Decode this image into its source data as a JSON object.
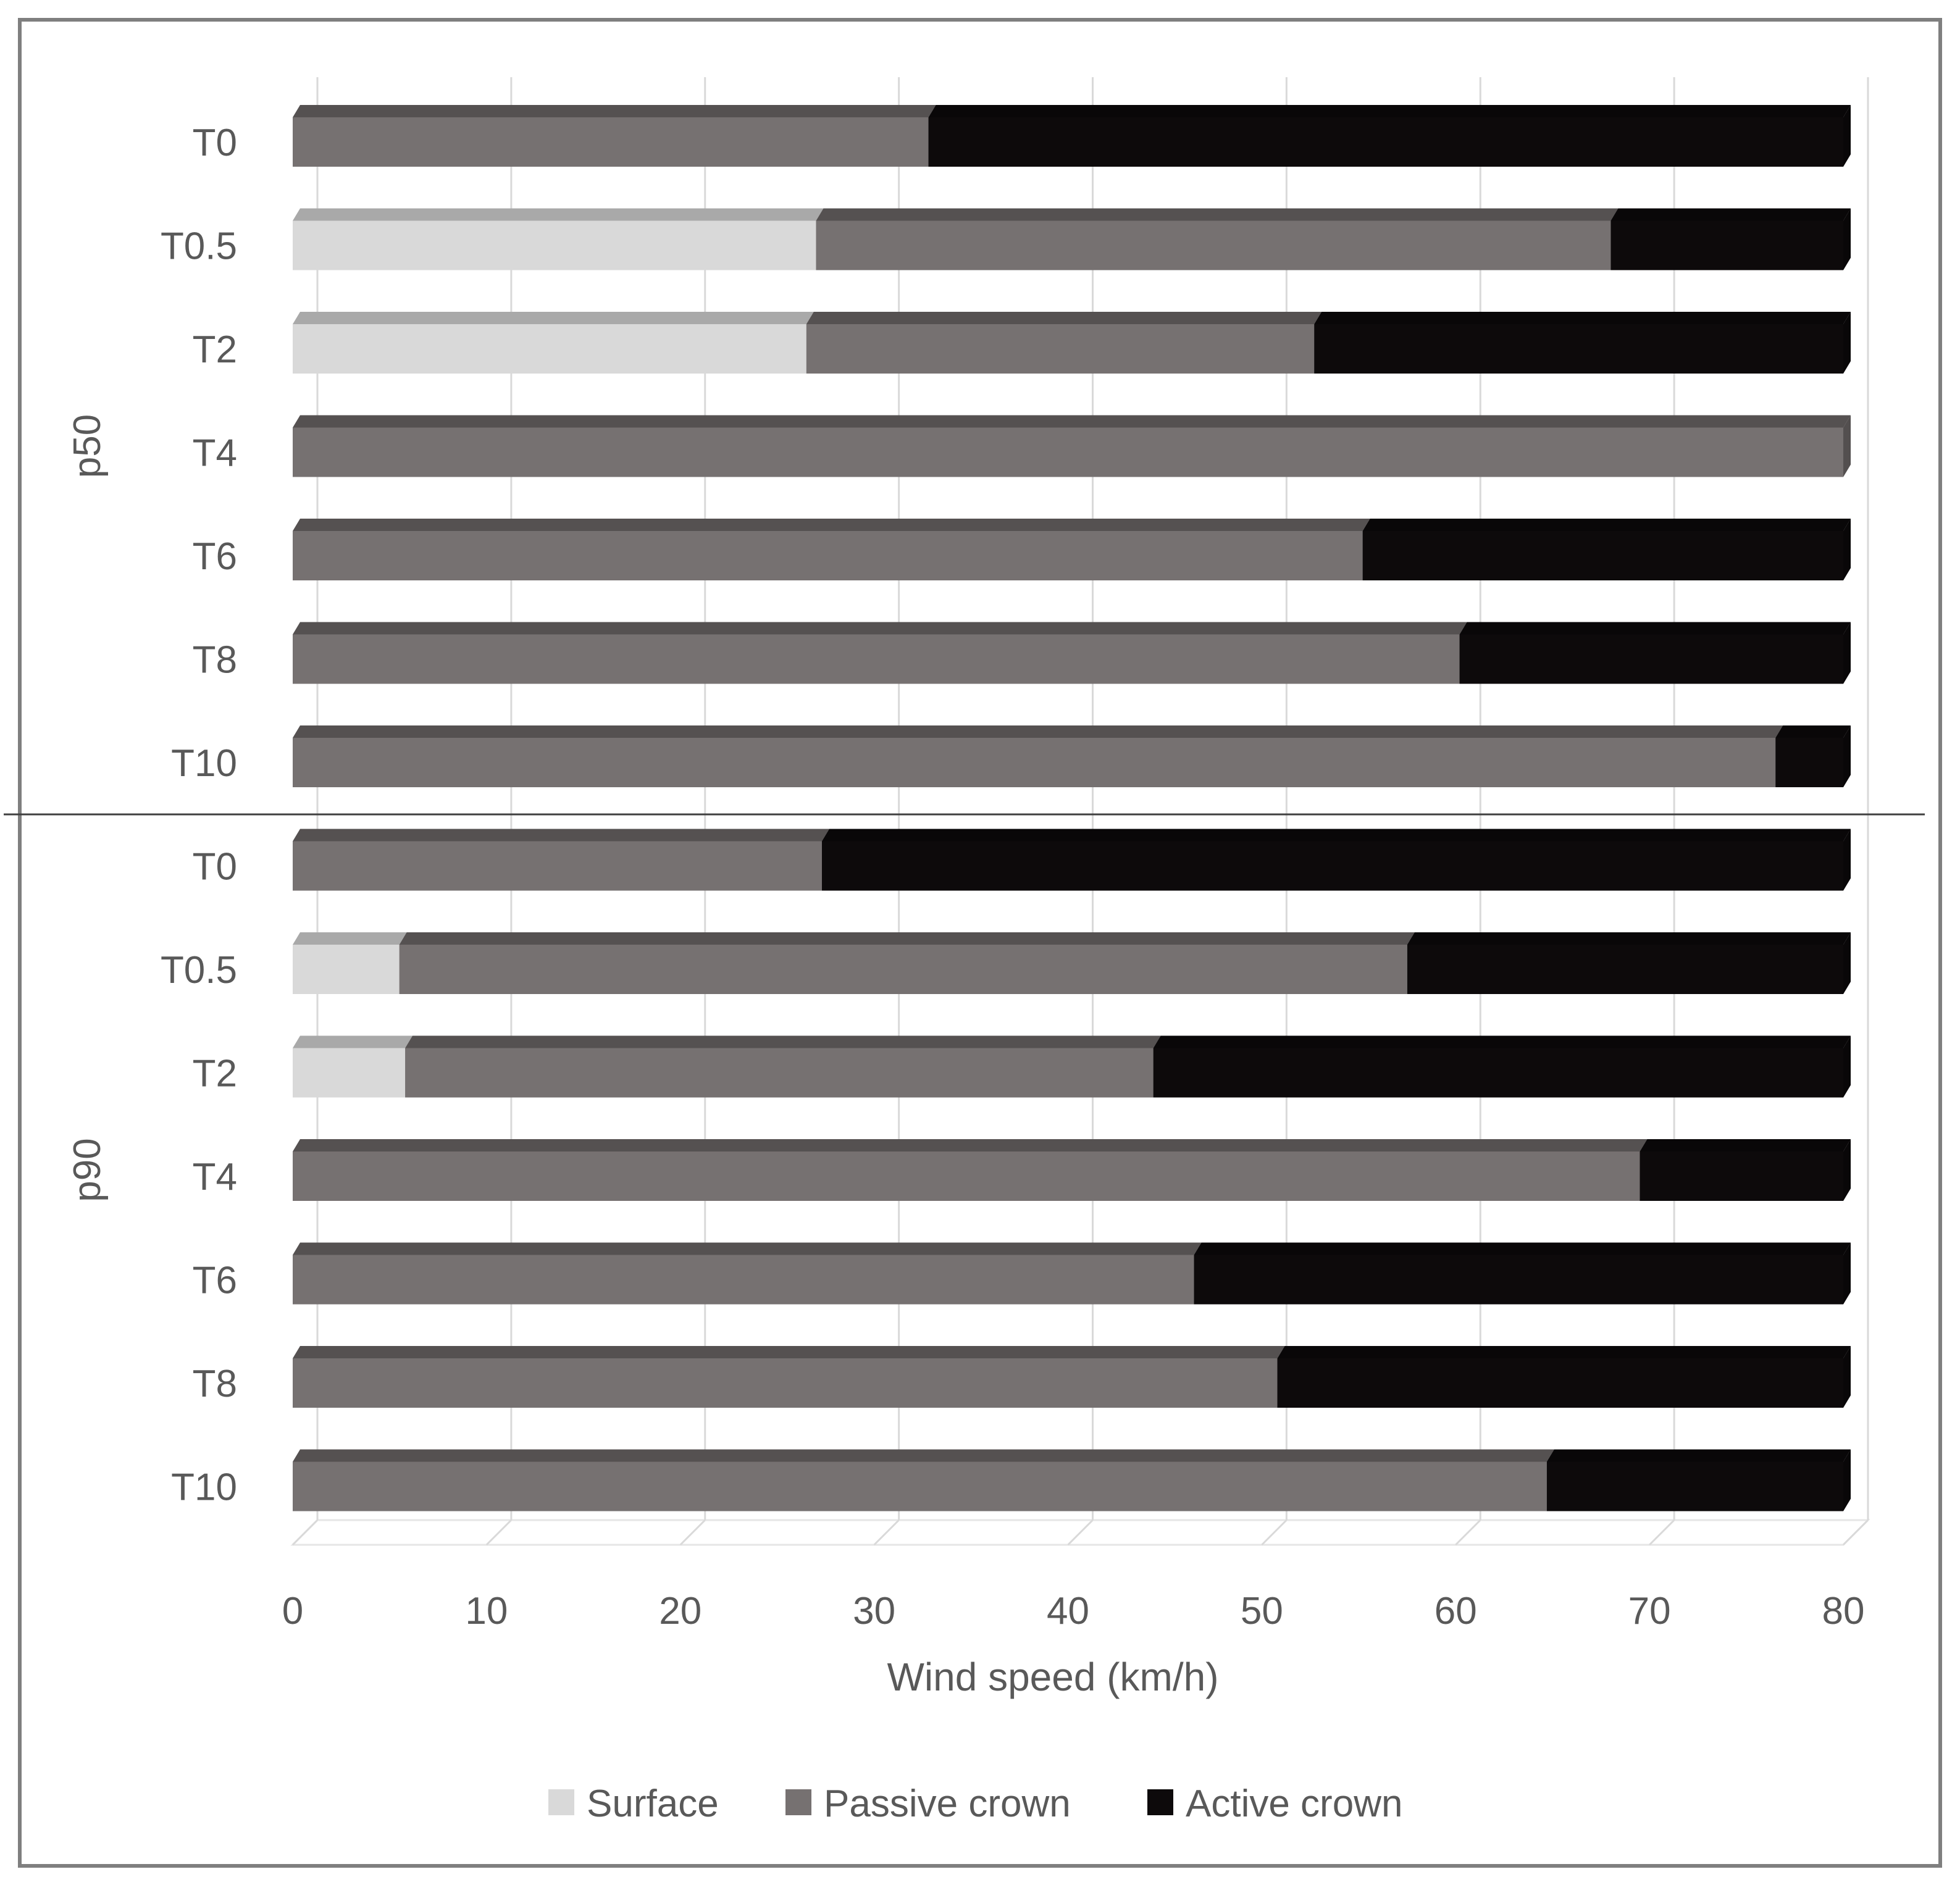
{
  "chart_data": {
    "type": "bar",
    "orientation": "horizontal",
    "stacked": true,
    "style": "3d",
    "xlabel": "Wind speed (km/h)",
    "xlim": [
      0,
      80
    ],
    "xticks": [
      0,
      10,
      20,
      30,
      40,
      50,
      60,
      70,
      80
    ],
    "grid": true,
    "legend_position": "bottom",
    "groups": [
      {
        "label": "p50",
        "categories": [
          "T0",
          "T0.5",
          "T2",
          "T4",
          "T6",
          "T8",
          "T10"
        ]
      },
      {
        "label": "p90",
        "categories": [
          "T0",
          "T0.5",
          "T2",
          "T4",
          "T6",
          "T8",
          "T10"
        ]
      }
    ],
    "series": [
      {
        "name": "Surface",
        "color": "#d9d9d9",
        "values": [
          0,
          27,
          26.5,
          0,
          0,
          0,
          0,
          0,
          5.5,
          5.8,
          0,
          0,
          0,
          0
        ]
      },
      {
        "name": "Passive crown",
        "color": "#767171",
        "values": [
          32.8,
          41,
          26.2,
          80,
          55.2,
          60.2,
          76.5,
          27.3,
          52,
          38.6,
          69.5,
          46.5,
          50.8,
          64.7
        ]
      },
      {
        "name": "Active crown",
        "color": "#0d0a0b",
        "values": [
          47.2,
          12,
          27.3,
          0,
          24.8,
          19.8,
          3.5,
          52.7,
          22.5,
          35.6,
          10.5,
          33.5,
          29.2,
          15.3
        ]
      }
    ]
  }
}
